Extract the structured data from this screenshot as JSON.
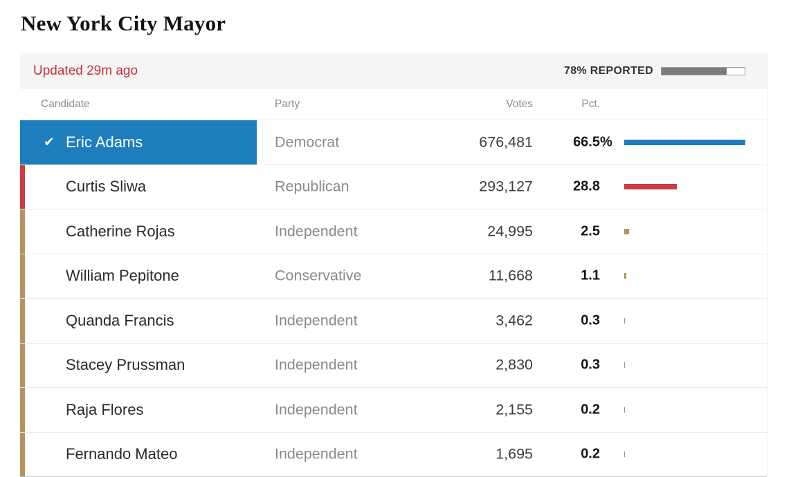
{
  "page": {
    "title": "New York City Mayor"
  },
  "status_bar": {
    "updated": "Updated 29m ago",
    "reported_label": "78% REPORTED",
    "reported_pct": 78
  },
  "columns": {
    "candidate": "Candidate",
    "party": "Party",
    "votes": "Votes",
    "pct": "Pct."
  },
  "icons": {
    "winner_check": "✔"
  },
  "colors": {
    "democrat_blue": "#1e7ebd",
    "republican_red": "#ce3c3f",
    "other_tan": "#b2945c",
    "updated_red": "#c32e40",
    "progress_fill": "#7c7c7c",
    "header_bg": "#f5f5f4"
  },
  "rows": [
    {
      "name": "Eric Adams",
      "party": "Democrat",
      "votes": "676,481",
      "pct": "66.5",
      "pct_suffix": "%",
      "winner": true,
      "color": "#1e7ebd"
    },
    {
      "name": "Curtis Sliwa",
      "party": "Republican",
      "votes": "293,127",
      "pct": "28.8",
      "pct_suffix": "",
      "winner": false,
      "color": "#ce3c3f"
    },
    {
      "name": "Catherine Rojas",
      "party": "Independent",
      "votes": "24,995",
      "pct": "2.5",
      "pct_suffix": "",
      "winner": false,
      "color": "#b2945c"
    },
    {
      "name": "William Pepitone",
      "party": "Conservative",
      "votes": "11,668",
      "pct": "1.1",
      "pct_suffix": "",
      "winner": false,
      "color": "#b2945c"
    },
    {
      "name": "Quanda Francis",
      "party": "Independent",
      "votes": "3,462",
      "pct": "0.3",
      "pct_suffix": "",
      "winner": false,
      "color": "#b2945c"
    },
    {
      "name": "Stacey Prussman",
      "party": "Independent",
      "votes": "2,830",
      "pct": "0.3",
      "pct_suffix": "",
      "winner": false,
      "color": "#b2945c"
    },
    {
      "name": "Raja Flores",
      "party": "Independent",
      "votes": "2,155",
      "pct": "0.2",
      "pct_suffix": "",
      "winner": false,
      "color": "#b2945c"
    },
    {
      "name": "Fernando Mateo",
      "party": "Independent",
      "votes": "1,695",
      "pct": "0.2",
      "pct_suffix": "",
      "winner": false,
      "color": "#b2945c"
    }
  ],
  "chart_data": {
    "type": "table",
    "title": "New York City Mayor",
    "subtitle": "Updated 29m ago",
    "reported_pct": 78,
    "columns": [
      "Candidate",
      "Party",
      "Votes",
      "Pct."
    ],
    "rows": [
      {
        "candidate": "Eric Adams",
        "party": "Democrat",
        "votes": 676481,
        "pct": 66.5,
        "winner": true
      },
      {
        "candidate": "Curtis Sliwa",
        "party": "Republican",
        "votes": 293127,
        "pct": 28.8,
        "winner": false
      },
      {
        "candidate": "Catherine Rojas",
        "party": "Independent",
        "votes": 24995,
        "pct": 2.5,
        "winner": false
      },
      {
        "candidate": "William Pepitone",
        "party": "Conservative",
        "votes": 11668,
        "pct": 1.1,
        "winner": false
      },
      {
        "candidate": "Quanda Francis",
        "party": "Independent",
        "votes": 3462,
        "pct": 0.3,
        "winner": false
      },
      {
        "candidate": "Stacey Prussman",
        "party": "Independent",
        "votes": 2830,
        "pct": 0.3,
        "winner": false
      },
      {
        "candidate": "Raja Flores",
        "party": "Independent",
        "votes": 2155,
        "pct": 0.2,
        "winner": false
      },
      {
        "candidate": "Fernando Mateo",
        "party": "Independent",
        "votes": 1695,
        "pct": 0.2,
        "winner": false
      }
    ],
    "bar_axis": {
      "note": "horizontal pct bars scaled so leader pct (66.5) fills track",
      "track_max_pct": 66.5
    }
  }
}
